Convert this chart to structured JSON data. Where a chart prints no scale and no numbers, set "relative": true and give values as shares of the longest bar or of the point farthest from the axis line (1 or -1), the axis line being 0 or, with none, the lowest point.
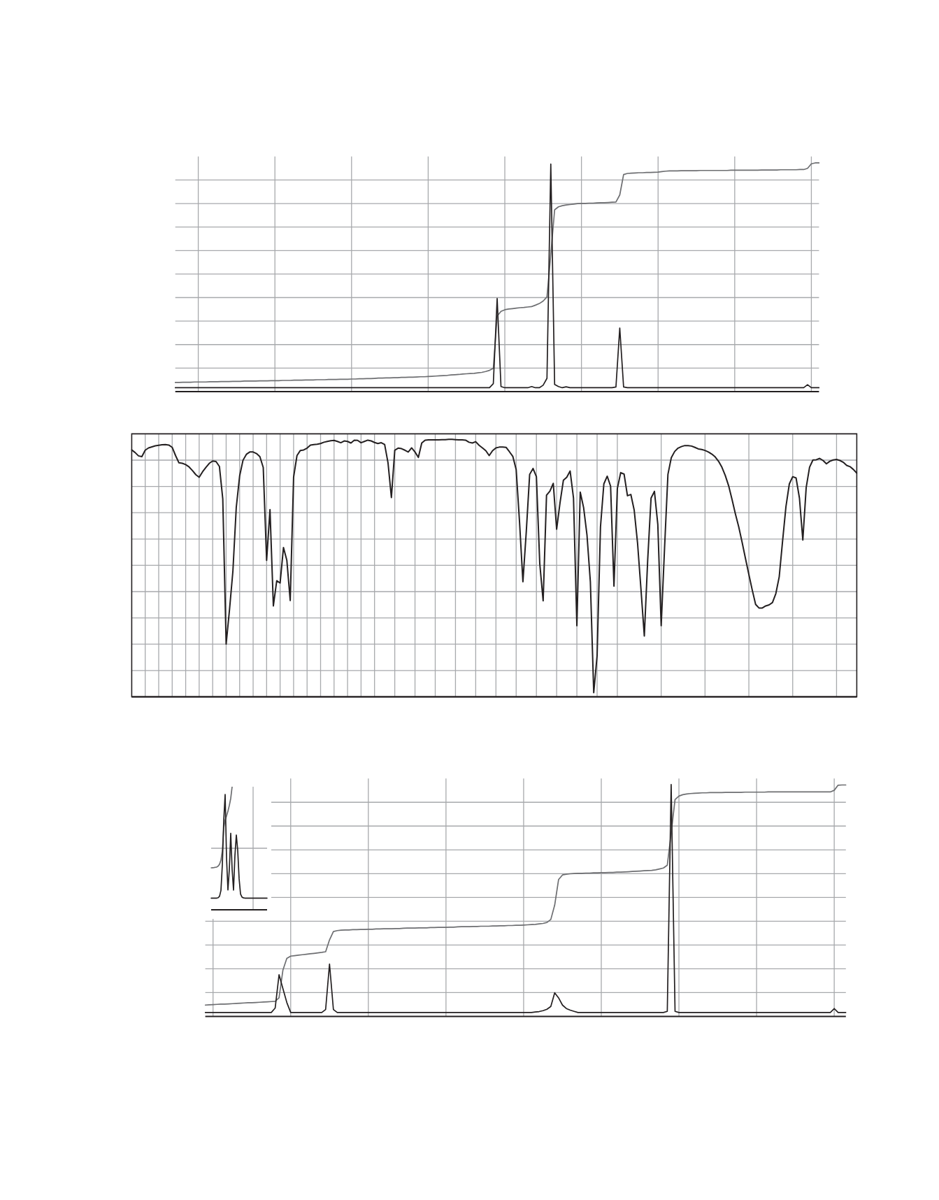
{
  "chart_data": [
    {
      "type": "line",
      "relative": true,
      "grid": true,
      "marker": "none",
      "categories": [
        null,
        null,
        null,
        null,
        null,
        null,
        null,
        null,
        null,
        null,
        null,
        null,
        null,
        null,
        null,
        null,
        null,
        null,
        null,
        null,
        null,
        null,
        null,
        null,
        null,
        null,
        null,
        null,
        null,
        null,
        null,
        null,
        null,
        null,
        null,
        null,
        null,
        null,
        null,
        null,
        null,
        null,
        null,
        null,
        null,
        null,
        null,
        null,
        null,
        null,
        null,
        null,
        null,
        null,
        null,
        null,
        null,
        null,
        null,
        null,
        null,
        null,
        null,
        null,
        null,
        null,
        null,
        null,
        null,
        null,
        null,
        null,
        null,
        null,
        null,
        null,
        null,
        null,
        null,
        null,
        null,
        null,
        null,
        null,
        null,
        null,
        null,
        null,
        null,
        null,
        null,
        null,
        null,
        null,
        null,
        null,
        null,
        null,
        null,
        null,
        null,
        null,
        null,
        null,
        null,
        null,
        null,
        null,
        null,
        null,
        null,
        null,
        null,
        null,
        null,
        null,
        null,
        null,
        null,
        null,
        null,
        null,
        null,
        null,
        null,
        null,
        null,
        null,
        null,
        null,
        null,
        null,
        null,
        null,
        null,
        null,
        null,
        null,
        null,
        null,
        null,
        null,
        null,
        null,
        null,
        null,
        null,
        null,
        null,
        null,
        null,
        null,
        null,
        null,
        null,
        null,
        null,
        null,
        null,
        null,
        null,
        null,
        null,
        null,
        null,
        null,
        null,
        null,
        null
      ],
      "series": [
        {
          "color": "#231f20",
          "values": [
            0.017,
            0.017,
            0.017,
            0.017,
            0.017,
            0.017,
            0.017,
            0.017,
            0.017,
            0.017,
            0.017,
            0.017,
            0.017,
            0.017,
            0.017,
            0.017,
            0.017,
            0.017,
            0.017,
            0.017,
            0.017,
            0.017,
            0.017,
            0.017,
            0.017,
            0.017,
            0.017,
            0.017,
            0.017,
            0.017,
            0.017,
            0.017,
            0.017,
            0.017,
            0.017,
            0.017,
            0.017,
            0.017,
            0.017,
            0.017,
            0.017,
            0.017,
            0.017,
            0.017,
            0.017,
            0.017,
            0.017,
            0.017,
            0.017,
            0.017,
            0.017,
            0.017,
            0.017,
            0.017,
            0.017,
            0.017,
            0.017,
            0.017,
            0.017,
            0.017,
            0.017,
            0.017,
            0.017,
            0.017,
            0.017,
            0.017,
            0.017,
            0.017,
            0.017,
            0.017,
            0.017,
            0.017,
            0.017,
            0.017,
            0.017,
            0.017,
            0.017,
            0.017,
            0.017,
            0.017,
            0.017,
            0.017,
            0.017,
            0.035,
            0.407,
            0.022,
            0.017,
            0.017,
            0.017,
            0.017,
            0.017,
            0.017,
            0.017,
            0.022,
            0.017,
            0.017,
            0.028,
            0.058,
            0.995,
            0.031,
            0.022,
            0.017,
            0.021,
            0.017,
            0.017,
            0.017,
            0.017,
            0.017,
            0.017,
            0.017,
            0.017,
            0.017,
            0.017,
            0.017,
            0.017,
            0.02,
            0.278,
            0.02,
            0.017,
            0.017,
            0.017,
            0.017,
            0.017,
            0.017,
            0.017,
            0.017,
            0.017,
            0.017,
            0.017,
            0.017,
            0.017,
            0.017,
            0.017,
            0.017,
            0.017,
            0.017,
            0.017,
            0.017,
            0.017,
            0.017,
            0.017,
            0.017,
            0.017,
            0.017,
            0.017,
            0.017,
            0.017,
            0.017,
            0.017,
            0.017,
            0.017,
            0.017,
            0.017,
            0.017,
            0.017,
            0.017,
            0.017,
            0.017,
            0.017,
            0.017,
            0.017,
            0.017,
            0.017,
            0.017,
            0.017,
            0.03,
            0.017,
            0.017,
            0.017
          ]
        },
        {
          "color": "#6d6e71",
          "values": [
            0.04,
            0.04,
            0.041,
            0.041,
            0.041,
            0.042,
            0.042,
            0.042,
            0.042,
            0.043,
            0.043,
            0.043,
            0.044,
            0.044,
            0.044,
            0.045,
            0.045,
            0.045,
            0.046,
            0.046,
            0.046,
            0.046,
            0.047,
            0.047,
            0.047,
            0.048,
            0.048,
            0.048,
            0.049,
            0.049,
            0.049,
            0.05,
            0.05,
            0.05,
            0.051,
            0.051,
            0.051,
            0.052,
            0.052,
            0.052,
            0.053,
            0.053,
            0.053,
            0.054,
            0.054,
            0.054,
            0.055,
            0.055,
            0.056,
            0.056,
            0.057,
            0.057,
            0.058,
            0.059,
            0.059,
            0.06,
            0.06,
            0.061,
            0.061,
            0.062,
            0.062,
            0.063,
            0.063,
            0.064,
            0.065,
            0.065,
            0.066,
            0.067,
            0.068,
            0.069,
            0.07,
            0.071,
            0.073,
            0.074,
            0.075,
            0.077,
            0.078,
            0.079,
            0.08,
            0.082,
            0.084,
            0.088,
            0.093,
            0.102,
            0.33,
            0.351,
            0.358,
            0.361,
            0.363,
            0.365,
            0.367,
            0.368,
            0.37,
            0.372,
            0.378,
            0.385,
            0.396,
            0.414,
            0.6,
            0.795,
            0.808,
            0.813,
            0.816,
            0.818,
            0.82,
            0.822,
            0.823,
            0.823,
            0.824,
            0.824,
            0.825,
            0.826,
            0.826,
            0.827,
            0.828,
            0.829,
            0.86,
            0.949,
            0.954,
            0.955,
            0.956,
            0.957,
            0.957,
            0.958,
            0.958,
            0.959,
            0.96,
            0.962,
            0.964,
            0.965,
            0.965,
            0.965,
            0.966,
            0.966,
            0.966,
            0.966,
            0.966,
            0.967,
            0.967,
            0.967,
            0.967,
            0.967,
            0.967,
            0.967,
            0.967,
            0.968,
            0.968,
            0.968,
            0.968,
            0.968,
            0.968,
            0.968,
            0.968,
            0.969,
            0.969,
            0.969,
            0.969,
            0.969,
            0.97,
            0.97,
            0.97,
            0.97,
            0.97,
            0.971,
            0.971,
            0.976,
            0.996,
            1,
            1
          ]
        }
      ]
    },
    {
      "type": "line",
      "relative": true,
      "grid": true,
      "marker": "none",
      "categories": [
        null,
        null,
        null,
        null,
        null,
        null,
        null,
        null,
        null,
        null,
        null,
        null,
        null,
        null,
        null,
        null,
        null,
        null,
        null,
        null,
        null,
        null,
        null,
        null,
        null,
        null,
        null,
        null,
        null,
        null,
        null,
        null,
        null,
        null,
        null,
        null,
        null,
        null,
        null,
        null,
        null,
        null,
        null,
        null,
        null,
        null,
        null,
        null,
        null,
        null,
        null,
        null,
        null,
        null,
        null,
        null,
        null,
        null,
        null,
        null,
        null,
        null,
        null,
        null,
        null,
        null,
        null,
        null,
        null,
        null,
        null,
        null,
        null,
        null,
        null,
        null,
        null,
        null,
        null,
        null,
        null,
        null,
        null,
        null,
        null,
        null,
        null,
        null,
        null,
        null,
        null,
        null,
        null,
        null,
        null,
        null,
        null,
        null,
        null,
        null,
        null,
        null,
        null,
        null,
        null,
        null,
        null,
        null,
        null,
        null,
        null,
        null,
        null,
        null,
        null,
        null,
        null,
        null,
        null,
        null,
        null,
        null,
        null,
        null,
        null,
        null,
        null,
        null,
        null,
        null,
        null,
        null,
        null,
        null,
        null,
        null,
        null,
        null,
        null,
        null,
        null,
        null,
        null,
        null,
        null,
        null,
        null,
        null,
        null,
        null,
        null,
        null,
        null,
        null,
        null,
        null,
        null,
        null,
        null,
        null,
        null,
        null,
        null,
        null,
        null,
        null,
        null,
        null,
        null,
        null,
        null,
        null,
        null,
        null,
        null,
        null,
        null,
        null,
        null,
        null,
        null,
        null,
        null,
        null,
        null,
        null,
        null,
        null,
        null,
        null,
        null,
        null,
        null,
        null,
        null,
        null,
        null,
        null,
        null,
        null,
        null,
        null,
        null,
        null,
        null,
        null,
        null,
        null,
        null,
        null,
        null,
        null,
        null,
        null,
        null,
        null
      ],
      "series": [
        {
          "color": "#231f20",
          "values": [
            0.959,
            0.949,
            0.936,
            0.933,
            0.958,
            0.967,
            0.971,
            0.975,
            0.977,
            0.979,
            0.98,
            0.978,
            0.969,
            0.937,
            0.909,
            0.907,
            0.902,
            0.893,
            0.879,
            0.863,
            0.853,
            0.874,
            0.891,
            0.907,
            0.916,
            0.914,
            0.895,
            0.769,
            0.205,
            0.339,
            0.488,
            0.736,
            0.858,
            0.919,
            0.942,
            0.951,
            0.951,
            0.945,
            0.933,
            0.891,
            0.53,
            0.727,
            0.353,
            0.451,
            0.442,
            0.58,
            0.53,
            0.374,
            0.853,
            0.937,
            0.957,
            0.959,
            0.966,
            0.978,
            0.98,
            0.981,
            0.984,
            0.989,
            0.992,
            0.995,
            0.996,
            0.992,
            0.987,
            0.994,
            0.992,
            0.986,
            0.997,
            0.996,
            0.987,
            0.992,
            0.997,
            0.994,
            0.988,
            0.984,
            0.987,
            0.98,
            0.909,
            0.774,
            0.958,
            0.966,
            0.964,
            0.958,
            0.951,
            0.967,
            0.951,
            0.93,
            0.986,
            0.997,
            0.998,
            0.998,
            0.998,
            0.998,
            0.999,
            0.999,
            1,
            1,
            0.999,
            0.998,
            0.998,
            0.997,
            0.989,
            0.986,
            0.991,
            0.977,
            0.967,
            0.956,
            0.937,
            0.956,
            0.967,
            0.97,
            0.97,
            0.969,
            0.952,
            0.934,
            0.883,
            0.679,
            0.447,
            0.642,
            0.864,
            0.887,
            0.855,
            0.517,
            0.373,
            0.783,
            0.799,
            0.829,
            0.651,
            0.753,
            0.841,
            0.853,
            0.877,
            0.772,
            0.276,
            0.795,
            0.735,
            0.628,
            0.447,
            0.016,
            0.16,
            0.66,
            0.827,
            0.857,
            0.818,
            0.43,
            0.809,
            0.871,
            0.865,
            0.781,
            0.786,
            0.725,
            0.596,
            0.419,
            0.236,
            0.531,
            0.772,
            0.798,
            0.67,
            0.276,
            0.577,
            0.864,
            0.929,
            0.953,
            0.966,
            0.972,
            0.976,
            0.976,
            0.974,
            0.969,
            0.963,
            0.961,
            0.957,
            0.951,
            0.943,
            0.932,
            0.915,
            0.892,
            0.86,
            0.82,
            0.767,
            0.711,
            0.66,
            0.6,
            0.537,
            0.475,
            0.415,
            0.359,
            0.345,
            0.345,
            0.353,
            0.357,
            0.366,
            0.401,
            0.466,
            0.605,
            0.739,
            0.827,
            0.855,
            0.85,
            0.772,
            0.609,
            0.813,
            0.892,
            0.92,
            0.921,
            0.926,
            0.918,
            0.905,
            0.915,
            0.92,
            0.922,
            0.918,
            0.911,
            0.899,
            0.894,
            0.883,
            0.869
          ]
        }
      ]
    },
    {
      "type": "line",
      "relative": true,
      "grid": true,
      "marker": "none",
      "categories": [
        null,
        null,
        null,
        null,
        null,
        null,
        null,
        null,
        null,
        null,
        null,
        null,
        null,
        null,
        null,
        null,
        null,
        null,
        null,
        null,
        null,
        null,
        null,
        null,
        null,
        null,
        null,
        null,
        null,
        null,
        null,
        null,
        null,
        null,
        null,
        null,
        null,
        null,
        null,
        null,
        null,
        null,
        null,
        null,
        null,
        null,
        null,
        null,
        null,
        null,
        null,
        null,
        null,
        null,
        null,
        null,
        null,
        null,
        null,
        null,
        null,
        null,
        null,
        null,
        null,
        null,
        null,
        null,
        null,
        null,
        null,
        null,
        null,
        null,
        null,
        null,
        null,
        null,
        null,
        null,
        null,
        null,
        null,
        null,
        null,
        null,
        null,
        null,
        null,
        null,
        null,
        null,
        null,
        null,
        null,
        null,
        null,
        null,
        null,
        null,
        null,
        null,
        null,
        null,
        null,
        null,
        null,
        null,
        null,
        null,
        null,
        null,
        null,
        null,
        null,
        null,
        null,
        null,
        null,
        null,
        null,
        null,
        null,
        null,
        null,
        null,
        null,
        null,
        null,
        null,
        null,
        null,
        null,
        null,
        null,
        null,
        null,
        null,
        null,
        null,
        null,
        null,
        null,
        null,
        null,
        null,
        null,
        null,
        null,
        null,
        null,
        null,
        null,
        null,
        null,
        null,
        null,
        null,
        null,
        null,
        null,
        null,
        null,
        null,
        null,
        null
      ],
      "series": [
        {
          "color": "#231f20",
          "values": [
            0.017,
            0.017,
            0.017,
            0.017,
            0.017,
            0.017,
            0.017,
            0.017,
            0.017,
            0.017,
            0.017,
            0.017,
            0.017,
            0.017,
            0.017,
            0.017,
            0.017,
            0.017,
            0.036,
            0.18,
            0.12,
            0.06,
            0.017,
            0.017,
            0.017,
            0.017,
            0.017,
            0.017,
            0.017,
            0.017,
            0.017,
            0.03,
            0.226,
            0.03,
            0.017,
            0.017,
            0.017,
            0.017,
            0.017,
            0.017,
            0.017,
            0.017,
            0.017,
            0.017,
            0.017,
            0.017,
            0.017,
            0.017,
            0.017,
            0.017,
            0.017,
            0.017,
            0.017,
            0.017,
            0.017,
            0.017,
            0.017,
            0.017,
            0.017,
            0.017,
            0.017,
            0.017,
            0.017,
            0.017,
            0.017,
            0.017,
            0.017,
            0.017,
            0.017,
            0.017,
            0.017,
            0.017,
            0.017,
            0.017,
            0.017,
            0.017,
            0.017,
            0.017,
            0.017,
            0.017,
            0.017,
            0.017,
            0.017,
            0.017,
            0.017,
            0.019,
            0.021,
            0.025,
            0.031,
            0.043,
            0.102,
            0.08,
            0.049,
            0.034,
            0.027,
            0.022,
            0.017,
            0.017,
            0.017,
            0.017,
            0.017,
            0.017,
            0.017,
            0.017,
            0.017,
            0.017,
            0.017,
            0.017,
            0.017,
            0.017,
            0.017,
            0.017,
            0.017,
            0.017,
            0.017,
            0.017,
            0.017,
            0.017,
            0.017,
            0.022,
            1,
            0.022,
            0.017,
            0.017,
            0.017,
            0.017,
            0.017,
            0.017,
            0.017,
            0.017,
            0.017,
            0.017,
            0.017,
            0.017,
            0.017,
            0.017,
            0.017,
            0.017,
            0.017,
            0.017,
            0.017,
            0.017,
            0.017,
            0.017,
            0.017,
            0.017,
            0.017,
            0.017,
            0.017,
            0.017,
            0.017,
            0.017,
            0.017,
            0.017,
            0.017,
            0.017,
            0.017,
            0.017,
            0.017,
            0.017,
            0.017,
            0.017,
            0.034,
            0.017,
            0.017,
            0.017
          ]
        },
        {
          "color": "#6d6e71",
          "values": [
            0.049,
            0.05,
            0.051,
            0.052,
            0.053,
            0.053,
            0.054,
            0.055,
            0.056,
            0.057,
            0.058,
            0.059,
            0.059,
            0.06,
            0.061,
            0.062,
            0.063,
            0.064,
            0.065,
            0.08,
            0.2,
            0.25,
            0.26,
            0.262,
            0.264,
            0.266,
            0.268,
            0.27,
            0.272,
            0.274,
            0.276,
            0.279,
            0.33,
            0.366,
            0.37,
            0.372,
            0.373,
            0.373,
            0.374,
            0.374,
            0.375,
            0.375,
            0.376,
            0.376,
            0.377,
            0.377,
            0.378,
            0.378,
            0.378,
            0.379,
            0.379,
            0.38,
            0.381,
            0.381,
            0.381,
            0.382,
            0.382,
            0.382,
            0.383,
            0.383,
            0.384,
            0.384,
            0.384,
            0.385,
            0.385,
            0.386,
            0.387,
            0.387,
            0.387,
            0.388,
            0.388,
            0.389,
            0.389,
            0.389,
            0.39,
            0.39,
            0.391,
            0.391,
            0.392,
            0.392,
            0.393,
            0.393,
            0.394,
            0.395,
            0.396,
            0.397,
            0.399,
            0.401,
            0.405,
            0.418,
            0.48,
            0.59,
            0.61,
            0.613,
            0.615,
            0.616,
            0.617,
            0.617,
            0.618,
            0.618,
            0.619,
            0.619,
            0.62,
            0.62,
            0.621,
            0.621,
            0.622,
            0.622,
            0.623,
            0.624,
            0.625,
            0.626,
            0.627,
            0.628,
            0.629,
            0.63,
            0.632,
            0.636,
            0.64,
            0.652,
            0.79,
            0.935,
            0.95,
            0.956,
            0.959,
            0.961,
            0.962,
            0.963,
            0.964,
            0.964,
            0.965,
            0.965,
            0.965,
            0.965,
            0.966,
            0.966,
            0.966,
            0.966,
            0.966,
            0.967,
            0.967,
            0.967,
            0.967,
            0.967,
            0.967,
            0.968,
            0.968,
            0.968,
            0.968,
            0.968,
            0.968,
            0.968,
            0.968,
            0.968,
            0.968,
            0.968,
            0.968,
            0.968,
            0.968,
            0.968,
            0.968,
            0.968,
            0.975,
            0.997,
            0.998,
            0.998
          ]
        }
      ]
    },
    {
      "type": "line",
      "relative": true,
      "grid": true,
      "marker": "none",
      "categories": [
        null,
        null,
        null,
        null,
        null,
        null,
        null,
        null,
        null,
        null,
        null,
        null,
        null,
        null,
        null,
        null,
        null,
        null,
        null,
        null,
        null,
        null,
        null,
        null,
        null,
        null,
        null,
        null,
        null,
        null,
        null,
        null,
        null,
        null,
        null,
        null,
        null,
        null,
        null,
        null,
        null
      ],
      "series": [
        {
          "color": "#231f20",
          "values": [
            0.095,
            0.095,
            0.095,
            0.095,
            0.095,
            0.098,
            0.11,
            0.157,
            0.365,
            0.725,
            0.937,
            0.422,
            0.161,
            0.328,
            0.621,
            0.328,
            0.16,
            0.441,
            0.608,
            0.483,
            0.252,
            0.129,
            0.104,
            0.097,
            0.095,
            0.095,
            0.095,
            0.095,
            0.095,
            0.095,
            0.095,
            0.095,
            0.095,
            0.095,
            0.095,
            0.095,
            0.095,
            0.095,
            0.095,
            0.095,
            0.095
          ]
        },
        {
          "color": "#6d6e71",
          "values": [
            0.341,
            0.342,
            0.343,
            0.345,
            0.347,
            0.355,
            0.37,
            0.403,
            0.479,
            0.665,
            0.729,
            0.763,
            0.801,
            0.848,
            0.905,
            1,
            null,
            null,
            null,
            null,
            null,
            null,
            null,
            null,
            null,
            null,
            null,
            null,
            null,
            null,
            null,
            null,
            null,
            null,
            null,
            null,
            null,
            null,
            null,
            null,
            null
          ]
        }
      ]
    }
  ]
}
